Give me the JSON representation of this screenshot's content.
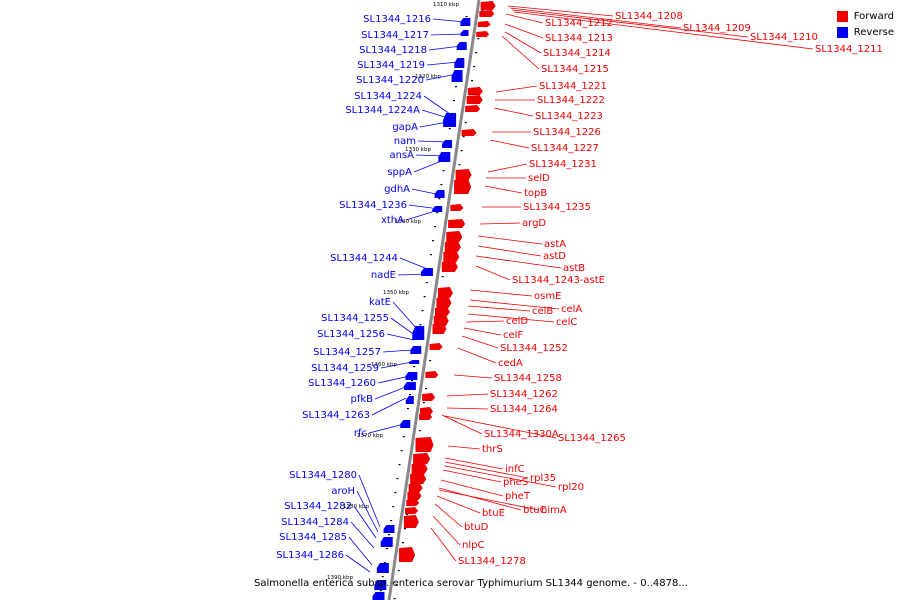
{
  "colors": {
    "forward": "#ee0000",
    "reverse": "#0000ee",
    "backbone": "#888888",
    "tick": "#000000"
  },
  "legend": [
    {
      "label": "Forward",
      "color": "#ee0000"
    },
    {
      "label": "Reverse",
      "color": "#0000ee"
    }
  ],
  "caption": "Salmonella enterica subsp. enterica serovar Typhimurium SL1344 genome. - 0..4878...",
  "kbp_ticks": [
    "1310 kbp",
    "1320 kbp",
    "1330 kbp",
    "1340 kbp",
    "1350 kbp",
    "1360 kbp",
    "1370 kbp",
    "1380 kbp",
    "1390 kbp"
  ],
  "forward_labels": [
    "SL1344_1208",
    "SL1344_1209",
    "SL1344_1210",
    "SL1344_1211",
    "SL1344_1212",
    "SL1344_1213",
    "SL1344_1214",
    "SL1344_1215",
    "SL1344_1221",
    "SL1344_1222",
    "SL1344_1223",
    "SL1344_1226",
    "SL1344_1227",
    "SL1344_1231",
    "selD",
    "topB",
    "SL1344_1235",
    "argD",
    "astA",
    "astD",
    "astB",
    "SL1344_1243-astE",
    "osmE",
    "celA",
    "celB",
    "celC",
    "celD",
    "celF",
    "SL1344_1252",
    "cedA",
    "SL1344_1258",
    "SL1344_1262",
    "SL1344_1264",
    "SL1344_1330A",
    "SL1344_1265",
    "thrS",
    "infC",
    "rpl35",
    "rpl20",
    "pheS",
    "pheT",
    "btuC",
    "himA",
    "btuE",
    "btuD",
    "nlpC",
    "SL1344_1278"
  ],
  "reverse_labels": [
    "SL1344_1216",
    "SL1344_1217",
    "SL1344_1218",
    "SL1344_1219",
    "SL1344_1220",
    "SL1344_1224",
    "SL1344_1224A",
    "gapA",
    "nam",
    "ansA",
    "sppA",
    "gdhA",
    "SL1344_1236",
    "xthA",
    "SL1344_1244",
    "nadE",
    "katE",
    "SL1344_1255",
    "SL1344_1256",
    "SL1344_1257",
    "SL1344_1259",
    "SL1344_1260",
    "pfkB",
    "SL1344_1263",
    "rfc",
    "SL1344_1280",
    "aroH",
    "SL1344_1282",
    "SL1344_1284",
    "SL1344_1285",
    "SL1344_1286"
  ]
}
